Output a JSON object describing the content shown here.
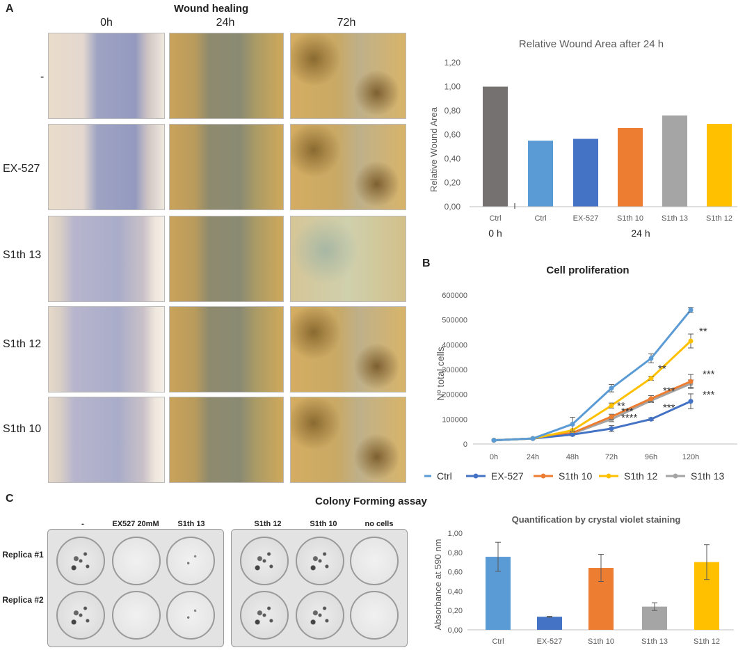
{
  "panelA": {
    "letter": "A",
    "title": "Wound healing",
    "columns": [
      "0h",
      "24h",
      "72h"
    ],
    "rows": [
      "-",
      "EX-527",
      "S1th 13",
      "S1th 12",
      "S1th 10"
    ]
  },
  "panelB": {
    "letter": "B",
    "title": "Cell proliferation",
    "legend": [
      "Ctrl",
      "EX-527",
      "S1th 10",
      "S1th 12",
      "S1th 13"
    ]
  },
  "panelC": {
    "letter": "C",
    "title": "Colony Forming assay",
    "plate1_labels": [
      "-",
      "EX527 20mM",
      "S1th 13"
    ],
    "plate2_labels": [
      "S1th 12",
      "S1th 10",
      "no cells"
    ],
    "replicas": [
      "Replica #1",
      "Replica #2"
    ]
  },
  "colors": {
    "ctrl0": "#767171",
    "ctrl": "#5b9bd5",
    "ex527": "#4472c4",
    "s1th10": "#ed7d31",
    "s1th13": "#a5a5a5",
    "s1th12": "#ffc000"
  },
  "chart_data": [
    {
      "type": "bar",
      "title": "Relative Wound Area after 24 h",
      "ylabel": "Relative Wound Area",
      "xlabel": "",
      "categories": [
        "Ctrl",
        "Ctrl",
        "EX-527",
        "S1th 10",
        "S1th 13",
        "S1th 12"
      ],
      "groups": [
        {
          "label": "0 h",
          "categories": [
            "Ctrl"
          ]
        },
        {
          "label": "24 h",
          "categories": [
            "Ctrl",
            "EX-527",
            "S1th 10",
            "S1th 13",
            "S1th 12"
          ]
        }
      ],
      "values": [
        1.0,
        0.55,
        0.565,
        0.655,
        0.76,
        0.69
      ],
      "ylim": [
        0,
        1.2
      ],
      "yticks": [
        "0,00",
        "0,20",
        "0,40",
        "0,60",
        "0,80",
        "1,00",
        "1,20"
      ],
      "grid": false
    },
    {
      "type": "line",
      "title": "Cell proliferation",
      "ylabel": "Nº total cells",
      "xlabel": "",
      "x": [
        "0h",
        "24h",
        "48h",
        "72h",
        "96h",
        "120h"
      ],
      "ylim": [
        0,
        600000
      ],
      "yticks": [
        "0",
        "100000",
        "200000",
        "300000",
        "400000",
        "500000",
        "600000"
      ],
      "legend_position": "bottom",
      "series": [
        {
          "name": "Ctrl",
          "values": [
            15000,
            22000,
            80000,
            225000,
            345000,
            540000
          ],
          "errors": [
            0,
            0,
            28000,
            15000,
            18000,
            10000
          ]
        },
        {
          "name": "EX-527",
          "values": [
            15000,
            22000,
            38000,
            62000,
            100000,
            172000
          ],
          "errors": [
            0,
            0,
            5000,
            12000,
            5000,
            30000
          ]
        },
        {
          "name": "S1th 10",
          "values": [
            15000,
            22000,
            45000,
            110000,
            183000,
            252000
          ],
          "errors": [
            0,
            0,
            5000,
            10000,
            12000,
            28000
          ]
        },
        {
          "name": "S1th 12",
          "values": [
            15000,
            22000,
            55000,
            155000,
            265000,
            415000
          ],
          "errors": [
            0,
            0,
            5000,
            10000,
            8000,
            28000
          ]
        },
        {
          "name": "S1th 13",
          "values": [
            15000,
            22000,
            42000,
            100000,
            175000,
            243000
          ],
          "errors": [
            0,
            0,
            5000,
            10000,
            8000,
            15000
          ]
        }
      ],
      "annotations": [
        {
          "x": "72h",
          "text": "**"
        },
        {
          "x": "72h",
          "text": "***"
        },
        {
          "x": "72h",
          "text": "****"
        },
        {
          "x": "96h",
          "text": "**"
        },
        {
          "x": "96h",
          "text": "***"
        },
        {
          "x": "96h",
          "text": "***"
        },
        {
          "x": "120h",
          "text": "**"
        },
        {
          "x": "120h",
          "text": "***"
        },
        {
          "x": "120h",
          "text": "***"
        }
      ]
    },
    {
      "type": "bar",
      "title": "Quantification by crystal violet staining",
      "ylabel": "Absorbance at 590 nm",
      "xlabel": "",
      "categories": [
        "Ctrl",
        "EX-527",
        "S1th 10",
        "S1th 13",
        "S1th 12"
      ],
      "values": [
        0.755,
        0.135,
        0.64,
        0.24,
        0.7
      ],
      "errors": [
        0.15,
        0.005,
        0.14,
        0.04,
        0.18
      ],
      "ylim": [
        0,
        1.0
      ],
      "yticks": [
        "0,00",
        "0,20",
        "0,40",
        "0,60",
        "0,80",
        "1,00"
      ],
      "grid": false
    }
  ]
}
